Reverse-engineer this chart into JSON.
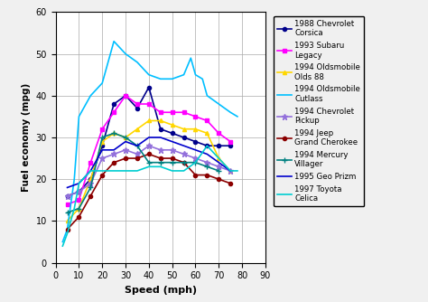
{
  "title": "",
  "xlabel": "Speed (mph)",
  "ylabel": "Fuel economy (mpg)",
  "xlim": [
    0,
    90
  ],
  "ylim": [
    0,
    60
  ],
  "xticks": [
    0,
    10,
    20,
    30,
    40,
    50,
    60,
    70,
    80,
    90
  ],
  "yticks": [
    0,
    10,
    20,
    30,
    40,
    50,
    60
  ],
  "bg_color": "#f0f0f0",
  "series": [
    {
      "label": "1988 Chevrolet\nCorsica",
      "color": "#00008B",
      "marker": "o",
      "markersize": 3,
      "linewidth": 1.2,
      "x": [
        5,
        10,
        15,
        20,
        25,
        30,
        35,
        40,
        45,
        50,
        55,
        60,
        65,
        70,
        75
      ],
      "y": [
        16,
        17,
        20,
        28,
        38,
        40,
        37,
        42,
        32,
        31,
        30,
        29,
        28,
        28,
        28
      ]
    },
    {
      "label": "1993 Subaru\nLegacy",
      "color": "#FF00FF",
      "marker": "s",
      "markersize": 3,
      "linewidth": 1.2,
      "x": [
        5,
        10,
        15,
        20,
        25,
        30,
        35,
        40,
        45,
        50,
        55,
        60,
        65,
        70,
        75
      ],
      "y": [
        14,
        15,
        24,
        32,
        36,
        40,
        38,
        38,
        36,
        36,
        36,
        35,
        34,
        31,
        29
      ]
    },
    {
      "label": "1994 Oldsmobile\nOlds 88",
      "color": "#FFD700",
      "marker": "^",
      "markersize": 3,
      "linewidth": 1.2,
      "x": [
        5,
        10,
        15,
        20,
        25,
        30,
        35,
        40,
        45,
        50,
        55,
        60,
        65,
        70,
        75
      ],
      "y": [
        10,
        13,
        20,
        29,
        31,
        30,
        32,
        34,
        34,
        33,
        32,
        32,
        31,
        25,
        22
      ]
    },
    {
      "label": "1994 Oldsmobile\nCutlass",
      "color": "#00BFFF",
      "marker": null,
      "markersize": 0,
      "linewidth": 1.2,
      "x": [
        3,
        5,
        8,
        10,
        15,
        20,
        25,
        30,
        35,
        40,
        45,
        50,
        55,
        58,
        60,
        63,
        65,
        70,
        75,
        78
      ],
      "y": [
        5,
        8,
        20,
        35,
        40,
        43,
        53,
        50,
        48,
        45,
        44,
        44,
        45,
        49,
        45,
        44,
        40,
        38,
        36,
        35
      ]
    },
    {
      "label": "1994 Chevrolet\nPickup",
      "color": "#9370DB",
      "marker": "*",
      "markersize": 5,
      "linewidth": 1.2,
      "x": [
        5,
        10,
        15,
        20,
        25,
        30,
        35,
        40,
        45,
        50,
        55,
        60,
        65,
        70,
        75
      ],
      "y": [
        16,
        17,
        19,
        25,
        26,
        27,
        26,
        28,
        27,
        27,
        26,
        25,
        24,
        23,
        22
      ]
    },
    {
      "label": "1994 Jeep\nGrand Cherokee",
      "color": "#8B0000",
      "marker": "o",
      "markersize": 3,
      "linewidth": 1.2,
      "x": [
        5,
        10,
        15,
        20,
        25,
        30,
        35,
        40,
        45,
        50,
        55,
        60,
        65,
        70,
        75
      ],
      "y": [
        8,
        11,
        16,
        21,
        24,
        25,
        25,
        26,
        25,
        25,
        24,
        21,
        21,
        20,
        19
      ]
    },
    {
      "label": "1994 Mercury\nVillager",
      "color": "#008080",
      "marker": "+",
      "markersize": 4,
      "linewidth": 1.2,
      "x": [
        5,
        10,
        15,
        20,
        25,
        30,
        35,
        40,
        45,
        50,
        55,
        60,
        65,
        70
      ],
      "y": [
        12,
        13,
        18,
        30,
        31,
        30,
        28,
        24,
        24,
        24,
        24,
        24,
        23,
        22
      ]
    },
    {
      "label": "1995 Geo Prizm",
      "color": "#0000CD",
      "marker": null,
      "markersize": 0,
      "linewidth": 1.2,
      "x": [
        5,
        10,
        15,
        20,
        25,
        30,
        35,
        40,
        45,
        50,
        55,
        60,
        65,
        70,
        75
      ],
      "y": [
        18,
        19,
        22,
        27,
        27,
        29,
        28,
        30,
        30,
        29,
        28,
        27,
        26,
        24,
        22
      ]
    },
    {
      "label": "1997 Toyota\nCelica",
      "color": "#00CED1",
      "marker": null,
      "markersize": 0,
      "linewidth": 1.2,
      "x": [
        3,
        5,
        8,
        10,
        15,
        20,
        25,
        30,
        35,
        40,
        45,
        50,
        55,
        60,
        65,
        70,
        75,
        78
      ],
      "y": [
        4,
        7,
        13,
        19,
        22,
        22,
        22,
        22,
        22,
        23,
        23,
        22,
        22,
        24,
        28,
        25,
        22,
        22
      ]
    }
  ]
}
